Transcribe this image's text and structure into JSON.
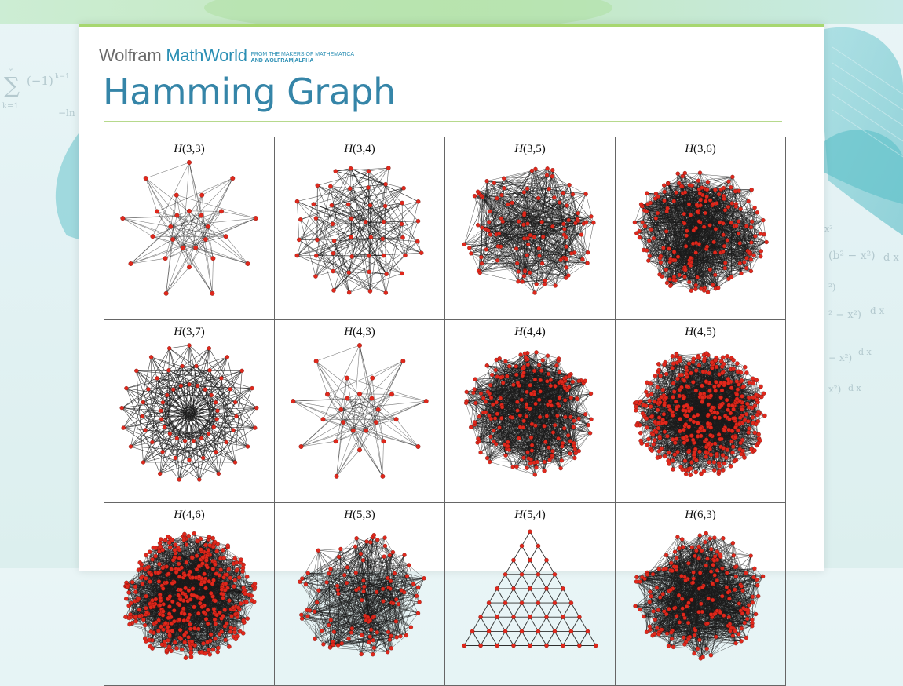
{
  "header": {
    "logo_wolfram": "Wolfram",
    "logo_mathworld": "MathWorld",
    "tagline_line1": "FROM THE MAKERS OF MATHEMATICA",
    "tagline_line2": "AND WOLFRAM|ALPHA"
  },
  "page": {
    "title": "Hamming Graph"
  },
  "colors": {
    "title": "#3585a8",
    "accent_rule": "#a7d770",
    "vertex": "#e0281c",
    "edge": "#1a1a1a"
  },
  "graphs": [
    {
      "func": "H",
      "args": "(3,3)",
      "style": "sparse"
    },
    {
      "func": "H",
      "args": "(3,4)",
      "style": "grid"
    },
    {
      "func": "H",
      "args": "(3,5)",
      "style": "mesh"
    },
    {
      "func": "H",
      "args": "(3,6)",
      "style": "dense"
    },
    {
      "func": "H",
      "args": "(3,7)",
      "style": "star"
    },
    {
      "func": "H",
      "args": "(4,3)",
      "style": "sparse"
    },
    {
      "func": "H",
      "args": "(4,4)",
      "style": "dense"
    },
    {
      "func": "H",
      "args": "(4,5)",
      "style": "verydense"
    },
    {
      "func": "H",
      "args": "(4,6)",
      "style": "verydense"
    },
    {
      "func": "H",
      "args": "(5,3)",
      "style": "mesh"
    },
    {
      "func": "H",
      "args": "(5,4)",
      "style": "triangle"
    },
    {
      "func": "H",
      "args": "(6,3)",
      "style": "dense"
    }
  ]
}
